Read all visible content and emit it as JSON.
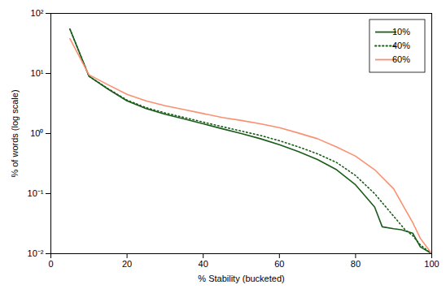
{
  "chart_data": {
    "type": "line",
    "xlabel": "% Stability (bucketed)",
    "ylabel": "% of words (log scale)",
    "log": "y",
    "xlim": [
      0,
      100
    ],
    "ylim": [
      0.01,
      100
    ],
    "xticks": [
      0,
      20,
      40,
      60,
      80,
      100
    ],
    "yticks": [
      {
        "value": 0.01,
        "label": "10⁻²"
      },
      {
        "value": 0.1,
        "label": "10⁻¹"
      },
      {
        "value": 1.0,
        "label": "10⁰"
      },
      {
        "value": 10.0,
        "label": "10¹"
      },
      {
        "value": 100.0,
        "label": "10²"
      }
    ],
    "grid": false,
    "legend": "upper right",
    "series": [
      {
        "name": "10%",
        "color": "#1a5c1a",
        "line_style": "solid",
        "x": [
          5,
          10,
          15,
          20,
          25,
          30,
          35,
          40,
          45,
          50,
          55,
          60,
          65,
          70,
          75,
          80,
          85,
          87,
          90,
          92,
          95,
          97,
          100
        ],
        "values": [
          55,
          9.0,
          5.5,
          3.5,
          2.6,
          2.1,
          1.75,
          1.45,
          1.2,
          1.0,
          0.82,
          0.65,
          0.5,
          0.37,
          0.25,
          0.14,
          0.06,
          0.028,
          0.026,
          0.025,
          0.022,
          0.013,
          0.01
        ]
      },
      {
        "name": "40%",
        "color": "#1a5c1a",
        "line_style": "dotted",
        "x": [
          5,
          10,
          15,
          20,
          25,
          30,
          35,
          40,
          45,
          50,
          55,
          60,
          65,
          70,
          75,
          80,
          85,
          90,
          93,
          95,
          97,
          100
        ],
        "values": [
          55,
          9.0,
          5.6,
          3.6,
          2.7,
          2.2,
          1.85,
          1.55,
          1.3,
          1.1,
          0.93,
          0.76,
          0.6,
          0.46,
          0.33,
          0.2,
          0.1,
          0.042,
          0.025,
          0.02,
          0.014,
          0.01
        ]
      },
      {
        "name": "60%",
        "color": "#FA9070",
        "line_style": "solid",
        "x": [
          5,
          10,
          15,
          20,
          25,
          30,
          35,
          40,
          45,
          50,
          55,
          60,
          65,
          70,
          75,
          80,
          85,
          90,
          93,
          95,
          97,
          100
        ],
        "values": [
          38,
          9.5,
          6.5,
          4.5,
          3.5,
          2.9,
          2.5,
          2.15,
          1.85,
          1.65,
          1.45,
          1.25,
          1.02,
          0.82,
          0.6,
          0.42,
          0.25,
          0.12,
          0.055,
          0.033,
          0.018,
          0.01
        ]
      }
    ]
  }
}
